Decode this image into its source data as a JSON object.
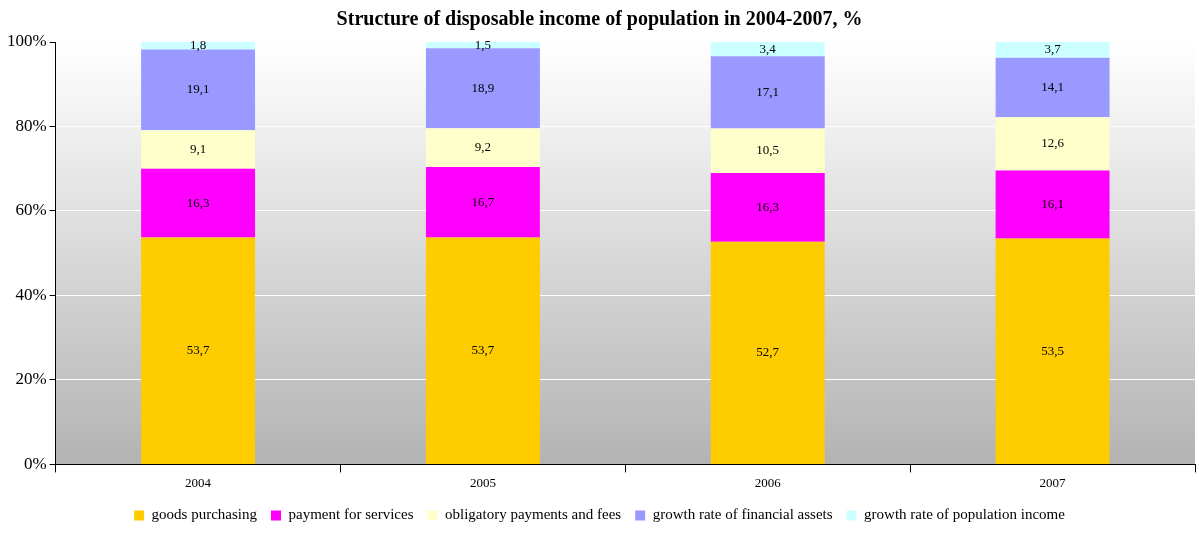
{
  "chart_data": {
    "type": "bar",
    "title": "Structure of disposable income of population in 2004-2007, %",
    "categories": [
      "2004",
      "2005",
      "2006",
      "2007"
    ],
    "stacked": true,
    "grid": "y",
    "legend": "bottom",
    "ylim": [
      0,
      100
    ],
    "yticks": [
      {
        "value": 0,
        "label": "0%"
      },
      {
        "value": 20,
        "label": "20%"
      },
      {
        "value": 40,
        "label": "40%"
      },
      {
        "value": 60,
        "label": "60%"
      },
      {
        "value": 80,
        "label": "80%"
      },
      {
        "value": 100,
        "label": "100%"
      }
    ],
    "series": [
      {
        "name": "goods purchasing",
        "color": "#ffcc00",
        "values": [
          53.7,
          53.7,
          52.7,
          53.5
        ],
        "value_labels": [
          "53,7",
          "53,7",
          "52,7",
          "53,5"
        ]
      },
      {
        "name": "payment for services",
        "color": "#ff00ff",
        "values": [
          16.3,
          16.7,
          16.3,
          16.1
        ],
        "value_labels": [
          "16,3",
          "16,7",
          "16,3",
          "16,1"
        ]
      },
      {
        "name": "obligatory payments and fees",
        "color": "#ffffcc",
        "values": [
          9.1,
          9.2,
          10.5,
          12.6
        ],
        "value_labels": [
          "9,1",
          "9,2",
          "10,5",
          "12,6"
        ]
      },
      {
        "name": "growth rate of financial assets",
        "color": "#9999ff",
        "values": [
          19.1,
          18.9,
          17.1,
          14.1
        ],
        "value_labels": [
          "19,1",
          "18,9",
          "17,1",
          "14,1"
        ]
      },
      {
        "name": "growth rate of population income",
        "color": "#ccffff",
        "values": [
          1.8,
          1.5,
          3.4,
          3.7
        ],
        "value_labels": [
          "1,8",
          "1,5",
          "3,4",
          "3,7"
        ]
      }
    ]
  }
}
